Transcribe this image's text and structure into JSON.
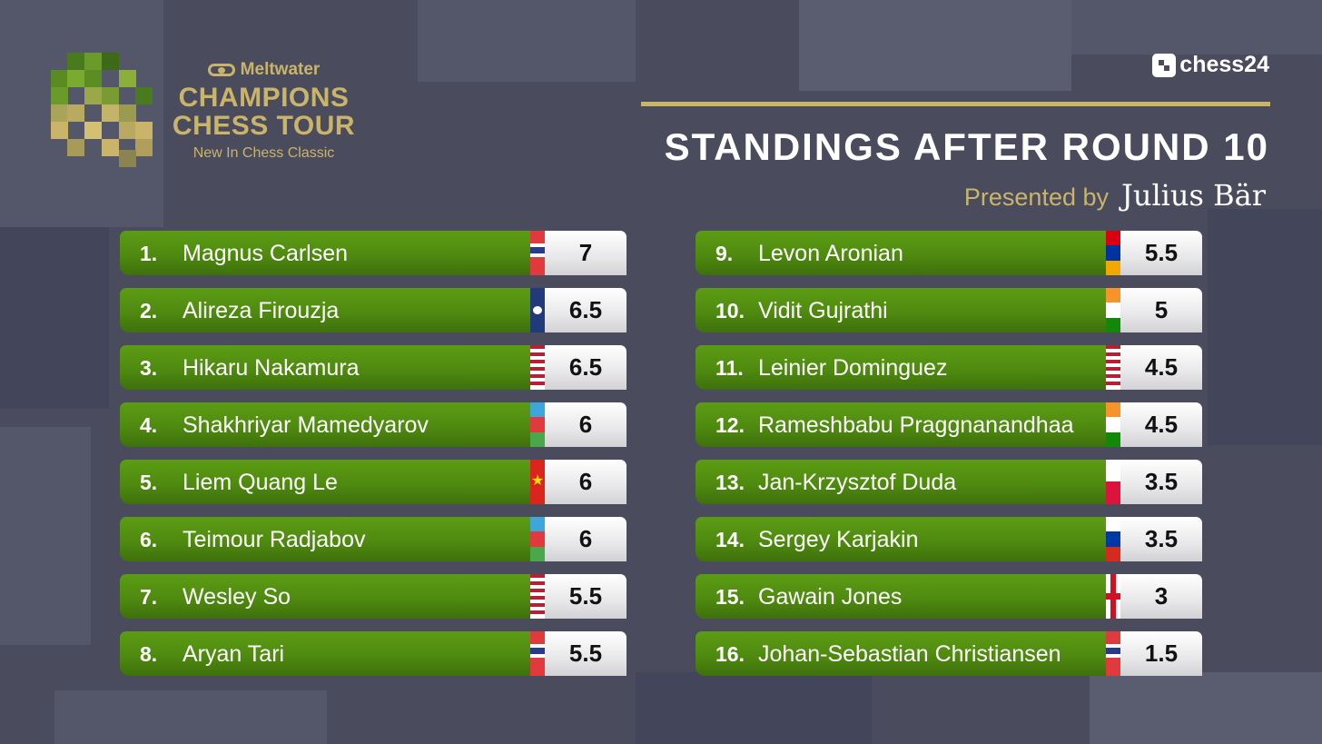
{
  "brand": {
    "sponsor": "Meltwater",
    "tour_line1": "CHAMPIONS",
    "tour_line2": "CHESS TOUR",
    "event": "New In Chess Classic"
  },
  "broadcaster": "chess24",
  "title": "STANDINGS AFTER ROUND 10",
  "presented_by": "Presented by",
  "presenter": "Julius Bär",
  "colors": {
    "gold": "#c9b46a",
    "green": "#4f8a10",
    "background": "#4a4c5e"
  },
  "left_column": [
    {
      "rank": "1.",
      "name": "Magnus Carlsen",
      "score": "7",
      "flag": "norway-flag"
    },
    {
      "rank": "2.",
      "name": "Alireza Firouzja",
      "score": "6.5",
      "flag": "fide-flag"
    },
    {
      "rank": "3.",
      "name": "Hikaru Nakamura",
      "score": "6.5",
      "flag": "usa-flag"
    },
    {
      "rank": "4.",
      "name": "Shakhriyar Mamedyarov",
      "score": "6",
      "flag": "azerbaijan-flag"
    },
    {
      "rank": "5.",
      "name": "Liem Quang Le",
      "score": "6",
      "flag": "vietnam-flag"
    },
    {
      "rank": "6.",
      "name": "Teimour Radjabov",
      "score": "6",
      "flag": "azerbaijan-flag"
    },
    {
      "rank": "7.",
      "name": "Wesley So",
      "score": "5.5",
      "flag": "usa-flag"
    },
    {
      "rank": "8.",
      "name": "Aryan Tari",
      "score": "5.5",
      "flag": "norway-flag"
    }
  ],
  "right_column": [
    {
      "rank": "9.",
      "name": "Levon Aronian",
      "score": "5.5",
      "flag": "armenia-flag"
    },
    {
      "rank": "10.",
      "name": "Vidit Gujrathi",
      "score": "5",
      "flag": "india-flag"
    },
    {
      "rank": "11.",
      "name": "Leinier Dominguez",
      "score": "4.5",
      "flag": "usa-flag"
    },
    {
      "rank": "12.",
      "name": "Rameshbabu Praggnanandhaa",
      "score": "4.5",
      "flag": "india-flag"
    },
    {
      "rank": "13.",
      "name": "Jan-Krzysztof Duda",
      "score": "3.5",
      "flag": "poland-flag"
    },
    {
      "rank": "14.",
      "name": "Sergey Karjakin",
      "score": "3.5",
      "flag": "russia-flag"
    },
    {
      "rank": "15.",
      "name": "Gawain Jones",
      "score": "3",
      "flag": "england-flag"
    },
    {
      "rank": "16.",
      "name": "Johan-Sebastian Christiansen",
      "score": "1.5",
      "flag": "norway-flag"
    }
  ]
}
